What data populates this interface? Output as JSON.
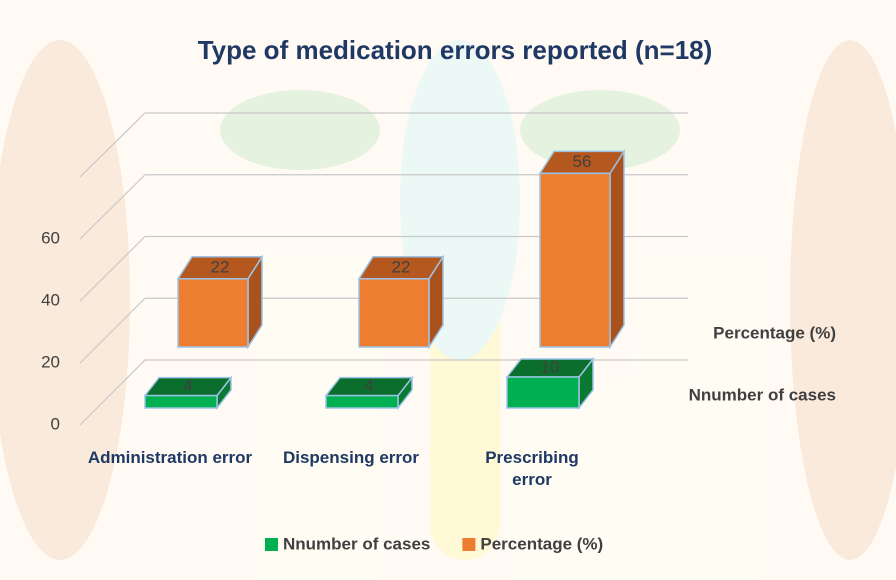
{
  "chart_data": {
    "type": "bar3d",
    "title": "Type of medication errors reported (n=18)",
    "categories": [
      "Administration error",
      "Dispensing error",
      "Prescribing error"
    ],
    "series": [
      {
        "name": "Nnumber of cases",
        "color": "#00b050",
        "values": [
          4,
          4,
          10
        ]
      },
      {
        "name": "Percentage (%)",
        "color": "#ed7d31",
        "values": [
          22,
          22,
          56
        ]
      }
    ],
    "ylim": [
      0,
      80
    ],
    "yticks": [
      0,
      20,
      40,
      60
    ],
    "grid": true,
    "legend": "bottom"
  }
}
